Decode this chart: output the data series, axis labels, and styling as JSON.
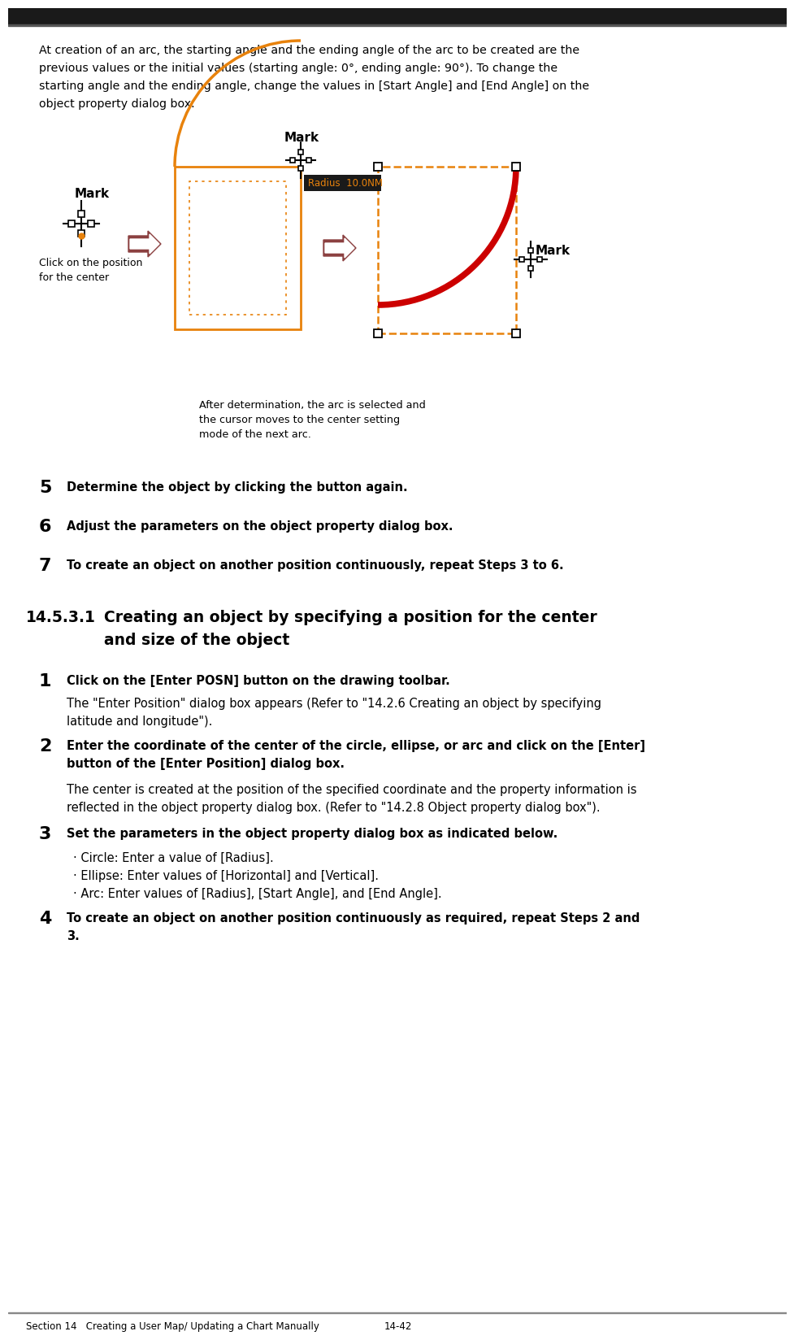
{
  "bg_color": "#ffffff",
  "top_bar_color": "#1a1a1a",
  "body_text_color": "#000000",
  "orange_color": "#E8820C",
  "red_color": "#CC0000",
  "dark_red_arrow": "#8B4040",
  "paragraph_text_lines": [
    "At creation of an arc, the starting angle and the ending angle of the arc to be created are the",
    "previous values or the initial values (starting angle: 0°, ending angle: 90°). To change the",
    "starting angle and the ending angle, change the values in [Start Angle] and [End Angle] on the",
    "object property dialog box."
  ],
  "caption_text_lines": [
    "After determination, the arc is selected and",
    "the cursor moves to the center setting",
    "mode of the next arc."
  ],
  "label_click_lines": [
    "Click on the position",
    "for the center"
  ],
  "label_mark": "Mark",
  "radius_label": "Radius  10.0NM",
  "step5_num": "5",
  "step5_bold": "Determine the object by clicking the button again.",
  "step6_num": "6",
  "step6_bold": "Adjust the parameters on the object property dialog box.",
  "step7_num": "7",
  "step7_bold": "To create an object on another position continuously, repeat Steps 3 to 6.",
  "section_num": "14.5.3.1",
  "section_title_line1": "Creating an object by specifying a position for the center",
  "section_title_line2": "and size of the object",
  "step1_num": "1",
  "step1_bold": "Click on the [Enter POSN] button on the drawing toolbar.",
  "step1_body_lines": [
    "The \"Enter Position\" dialog box appears (Refer to \"14.2.6 Creating an object by specifying",
    "latitude and longitude\")."
  ],
  "step2_num": "2",
  "step2_bold_lines": [
    "Enter the coordinate of the center of the circle, ellipse, or arc and click on the [Enter]",
    "button of the [Enter Position] dialog box."
  ],
  "step2_body_lines": [
    "The center is created at the position of the specified coordinate and the property information is",
    "reflected in the object property dialog box. (Refer to \"14.2.8 Object property dialog box\")."
  ],
  "step3_num": "3",
  "step3_bold": "Set the parameters in the object property dialog box as indicated below.",
  "step3_bullets": [
    "· Circle: Enter a value of [Radius].",
    "· Ellipse: Enter values of [Horizontal] and [Vertical].",
    "· Arc: Enter values of [Radius], [Start Angle], and [End Angle]."
  ],
  "step4_num": "4",
  "step4_bold_lines": [
    "To create an object on another position continuously as required, repeat Steps 2 and",
    "3."
  ],
  "footer_left": "Section 14   Creating a User Map/ Updating a Chart Manually",
  "footer_center": "14-42"
}
